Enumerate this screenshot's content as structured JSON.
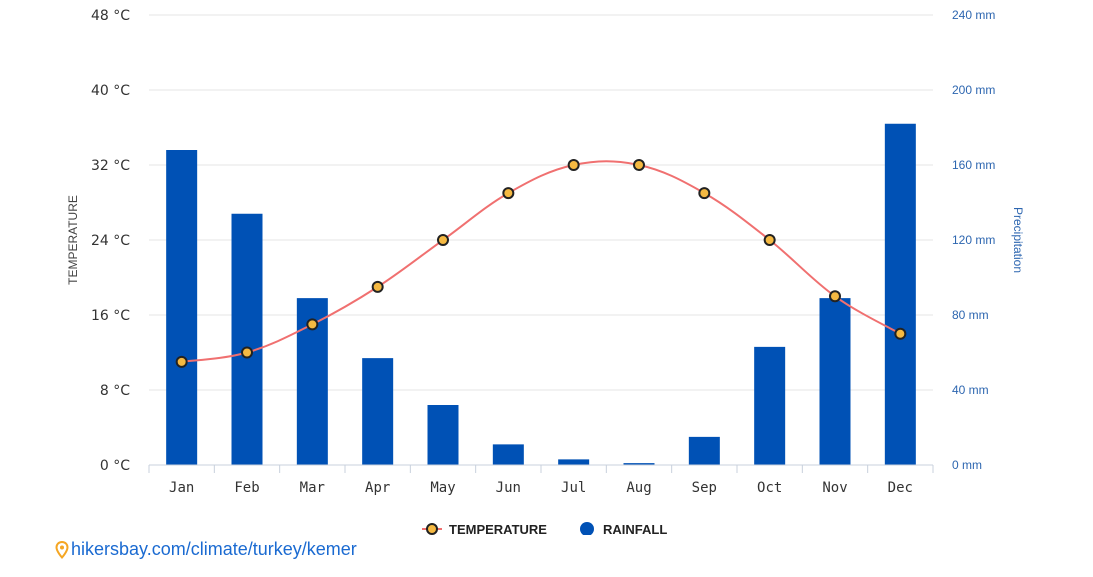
{
  "chart_data": {
    "type": "bar+line",
    "categories": [
      "Jan",
      "Feb",
      "Mar",
      "Apr",
      "May",
      "Jun",
      "Jul",
      "Aug",
      "Sep",
      "Oct",
      "Nov",
      "Dec"
    ],
    "series": [
      {
        "name": "TEMPERATURE",
        "type": "line",
        "axis": "left",
        "values": [
          11,
          12,
          15,
          19,
          24,
          29,
          32,
          32,
          29,
          24,
          18,
          14
        ]
      },
      {
        "name": "RAINFALL",
        "type": "bar",
        "axis": "right",
        "values": [
          168,
          134,
          89,
          57,
          32,
          11,
          3,
          1,
          15,
          63,
          89,
          182
        ]
      }
    ],
    "left_axis": {
      "title": "TEMPERATURE",
      "ylim": [
        0,
        48
      ],
      "ticks": [
        0,
        8,
        16,
        24,
        32,
        40,
        48
      ],
      "tick_labels": [
        "0 °C",
        "8 °C",
        "16 °C",
        "24 °C",
        "32 °C",
        "40 °C",
        "48 °C"
      ]
    },
    "right_axis": {
      "title": "Precipitation",
      "ylim": [
        0,
        240
      ],
      "ticks": [
        0,
        40,
        80,
        120,
        160,
        200,
        240
      ],
      "tick_labels": [
        "0 mm",
        "40 mm",
        "80 mm",
        "120 mm",
        "160 mm",
        "200 mm",
        "240 mm"
      ]
    },
    "grid": true,
    "legend": {
      "position": "bottom-center",
      "items": [
        {
          "label": "TEMPERATURE",
          "marker": "line-circle"
        },
        {
          "label": "RAINFALL",
          "marker": "circle"
        }
      ]
    },
    "colors": {
      "bar": "#0051b5",
      "line": "#f07070",
      "marker_fill": "#f5b942",
      "marker_stroke": "#222222",
      "grid": "#e6e6e6",
      "right_axis_text": "#2d66b0"
    }
  },
  "source": {
    "text": "hikersbay.com/climate/turkey/kemer",
    "icon": "map-pin-icon",
    "color": "#1a6ad1"
  }
}
